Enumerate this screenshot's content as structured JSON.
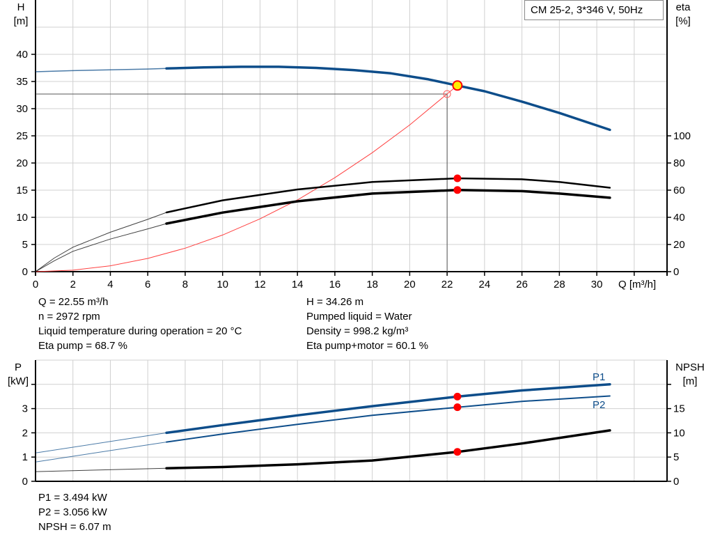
{
  "chart_data": [
    {
      "type": "line",
      "title": "CM 25-2, 3*346 V, 50Hz",
      "xlabel": "Q [m³/h]",
      "ylabel_left": [
        "H",
        "[m]"
      ],
      "ylabel_right": [
        "eta",
        "[%]"
      ],
      "xlim": [
        0,
        33.75
      ],
      "ylim_left": [
        0,
        50
      ],
      "ylim_right": [
        0,
        200
      ],
      "x_ticks": [
        "0",
        "2",
        "4",
        "6",
        "8",
        "10",
        "12",
        "14",
        "16",
        "18",
        "20",
        "22",
        "24",
        "26",
        "28",
        "30"
      ],
      "y_ticks_left": [
        "0",
        "5",
        "10",
        "15",
        "20",
        "25",
        "30",
        "35",
        "40"
      ],
      "y_ticks_right": [
        "0",
        "20",
        "40",
        "60",
        "80",
        "100"
      ],
      "grid": true,
      "series": [
        {
          "axis": "left",
          "color": "#0d4d8a",
          "points": [
            [
              0,
              36.8
            ],
            [
              2,
              37.0
            ],
            [
              4,
              37.15
            ],
            [
              6,
              37.3
            ],
            [
              7,
              37.4
            ],
            [
              9,
              37.6
            ],
            [
              11,
              37.7
            ],
            [
              13,
              37.7
            ],
            [
              15,
              37.5
            ],
            [
              17,
              37.1
            ],
            [
              19,
              36.5
            ],
            [
              21,
              35.4
            ],
            [
              22.55,
              34.26
            ],
            [
              24,
              33.2
            ],
            [
              26,
              31.3
            ],
            [
              28,
              29.2
            ],
            [
              30.7,
              26.1
            ]
          ]
        },
        {
          "axis": "right",
          "color": "#000000",
          "points": [
            [
              0,
              0
            ],
            [
              1,
              10
            ],
            [
              2,
              18
            ],
            [
              4,
              29
            ],
            [
              6,
              38.5
            ],
            [
              7,
              43.6
            ],
            [
              10,
              52.5
            ],
            [
              14,
              60.5
            ],
            [
              18,
              66
            ],
            [
              22.55,
              68.7
            ],
            [
              26,
              68
            ],
            [
              28,
              66
            ],
            [
              30.7,
              61.8
            ]
          ]
        },
        {
          "axis": "right",
          "color": "#000000",
          "points": [
            [
              0,
              0
            ],
            [
              1,
              8
            ],
            [
              2,
              15
            ],
            [
              4,
              24
            ],
            [
              6,
              31.5
            ],
            [
              7,
              35.4
            ],
            [
              10,
              43.5
            ],
            [
              14,
              51.8
            ],
            [
              18,
              57.5
            ],
            [
              22.55,
              60.1
            ],
            [
              26,
              59.3
            ],
            [
              28,
              57.5
            ],
            [
              30.7,
              54.4
            ]
          ]
        },
        {
          "axis": "left",
          "color": "#ff4040",
          "type": "system-curve",
          "points": [
            [
              0,
              0
            ],
            [
              2,
              0.27
            ],
            [
              4,
              1.08
            ],
            [
              6,
              2.43
            ],
            [
              8,
              4.32
            ],
            [
              10,
              6.75
            ],
            [
              12,
              9.72
            ],
            [
              14,
              13.2
            ],
            [
              16,
              17.3
            ],
            [
              18,
              21.9
            ],
            [
              20,
              27.0
            ],
            [
              22,
              32.7
            ],
            [
              22.55,
              34.26
            ]
          ]
        }
      ],
      "duty_point": {
        "q": 22.55,
        "h": 34.26,
        "eta_pump": 68.7,
        "eta_total": 60.1
      },
      "reference_point": {
        "q": 22,
        "h": 32.7
      }
    },
    {
      "type": "line",
      "xlim": [
        0,
        33.75
      ],
      "ylabel_left": [
        "P",
        "[kW]"
      ],
      "ylabel_right": [
        "NPSH",
        "[m]"
      ],
      "ylim_left": [
        0,
        5
      ],
      "ylim_right": [
        0,
        25
      ],
      "y_ticks_left": [
        "0",
        "1",
        "2",
        "3",
        ""
      ],
      "y_ticks_right": [
        "0",
        "5",
        "10",
        "15",
        ""
      ],
      "grid": true,
      "series": [
        {
          "name": "P1",
          "axis": "left",
          "color": "#0d4d8a",
          "points": [
            [
              0,
              1.17
            ],
            [
              7,
              2.0
            ],
            [
              10,
              2.32
            ],
            [
              14,
              2.72
            ],
            [
              18,
              3.1
            ],
            [
              22.55,
              3.494
            ],
            [
              26,
              3.75
            ],
            [
              30.7,
              4.0
            ]
          ]
        },
        {
          "name": "P2",
          "axis": "left",
          "color": "#0d4d8a",
          "points": [
            [
              0,
              0.8
            ],
            [
              7,
              1.62
            ],
            [
              10,
              1.95
            ],
            [
              14,
              2.35
            ],
            [
              18,
              2.72
            ],
            [
              22.55,
              3.056
            ],
            [
              26,
              3.3
            ],
            [
              30.7,
              3.52
            ]
          ]
        },
        {
          "axis": "right",
          "color": "#000000",
          "points": [
            [
              0,
              2.0
            ],
            [
              7,
              2.7
            ],
            [
              10,
              2.95
            ],
            [
              14,
              3.5
            ],
            [
              18,
              4.3
            ],
            [
              22.55,
              6.07
            ],
            [
              26,
              7.8
            ],
            [
              30.7,
              10.5
            ]
          ]
        }
      ],
      "duty_point": {
        "q": 22.55,
        "p1": 3.494,
        "p2": 3.056,
        "npsh": 6.07
      }
    }
  ],
  "info_top_left": [
    "Q = 22.55 m³/h",
    "n = 2972 rpm",
    "Liquid temperature during operation = 20 °C",
    "Eta pump = 68.7 %"
  ],
  "info_top_right": [
    "H = 34.26 m",
    "Pumped liquid = Water",
    "Density = 998.2 kg/m³",
    "Eta pump+motor = 60.1 %"
  ],
  "info_bottom": [
    "P1 = 3.494 kW",
    "P2 = 3.056 kW",
    "NPSH = 6.07 m"
  ]
}
